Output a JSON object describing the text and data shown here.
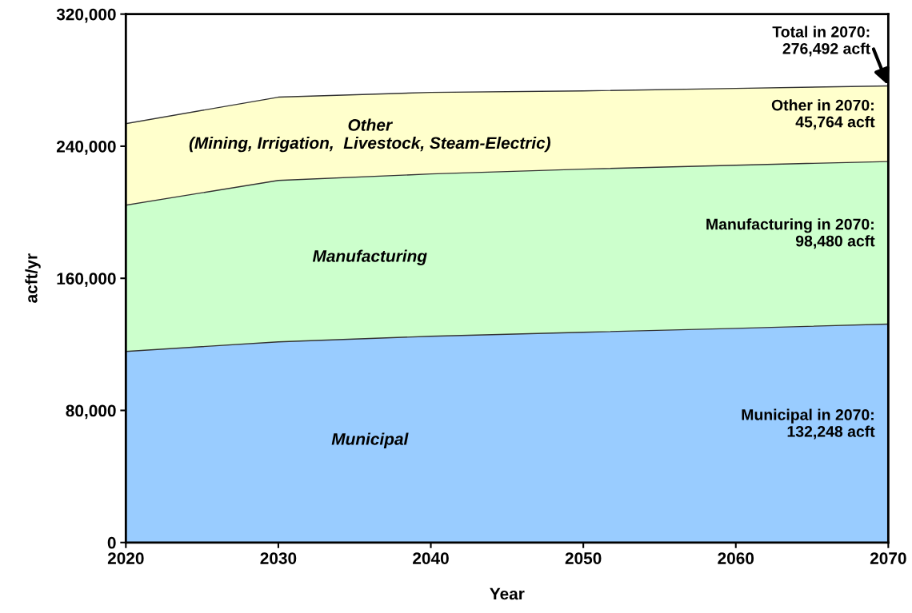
{
  "chart_data": {
    "type": "area",
    "stacked": true,
    "xlabel": "Year",
    "ylabel": "acft/yr",
    "x": [
      2020,
      2030,
      2040,
      2050,
      2060,
      2070
    ],
    "series": [
      {
        "name": "Municipal",
        "color": "#99ccff",
        "values": [
          115700,
          121500,
          124900,
          127300,
          129700,
          132248
        ]
      },
      {
        "name": "Manufacturing",
        "color": "#ccffcc",
        "values": [
          88600,
          97800,
          98300,
          98800,
          98800,
          98480
        ]
      },
      {
        "name": "Other\n(Mining, Irrigation,  Livestock, Steam-Electric)",
        "color": "#ffffcc",
        "values": [
          49400,
          50400,
          49400,
          47400,
          46500,
          45764
        ]
      }
    ],
    "xlim": [
      2020,
      2070
    ],
    "xticks": [
      2020,
      2030,
      2040,
      2050,
      2060,
      2070
    ],
    "ylim": [
      0,
      320000
    ],
    "yticks": [
      0,
      {
        "value": 80000,
        "label": "80,000"
      },
      {
        "value": 160000,
        "label": "160,000"
      },
      {
        "value": 240000,
        "label": "240,000"
      },
      {
        "value": 320000,
        "label": "320,000"
      }
    ],
    "annotations": [
      {
        "text": "Total in 2070:\n276,492 acft",
        "x": 2070,
        "y": 276492
      },
      "Other in 2070:\n45,764 acft",
      "Manufacturing in 2070:\n98,480 acft",
      "Municipal in 2070:\n132,248 acft"
    ],
    "grid": false,
    "legend": false
  }
}
